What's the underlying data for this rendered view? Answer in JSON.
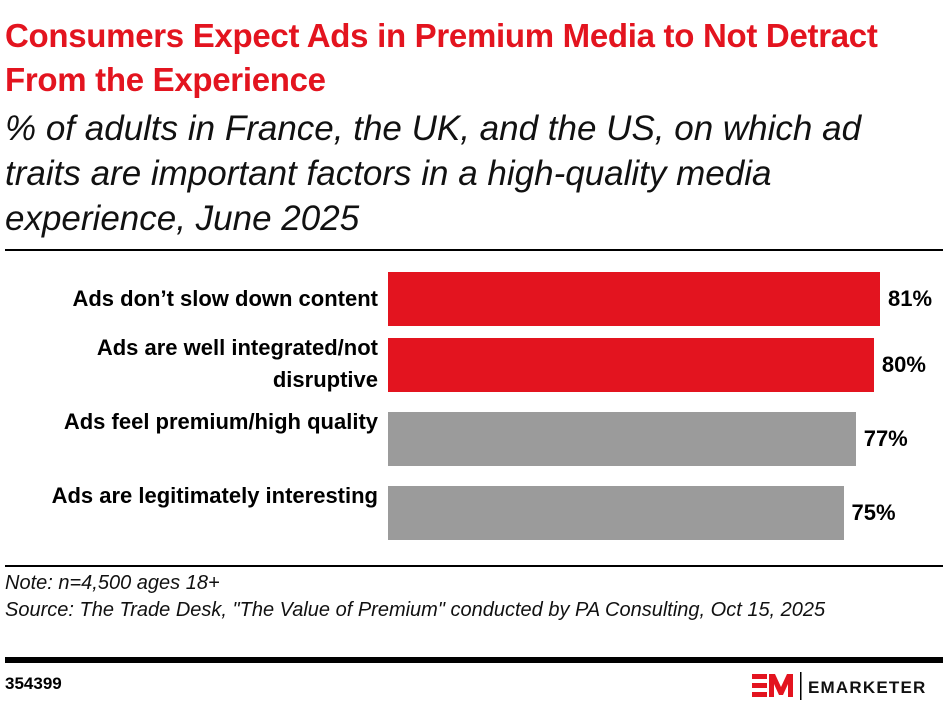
{
  "header": {
    "title": "Consumers Expect Ads in Premium Media to Not Detract From the Experience",
    "subtitle": "% of adults in France, the UK, and the US, on which ad traits are important factors in a high-quality media experience, June 2025"
  },
  "chart_data": {
    "type": "bar",
    "orientation": "horizontal",
    "categories": [
      "Ads don’t slow down content",
      "Ads are well integrated/not disruptive",
      "Ads feel premium/high quality",
      "Ads are legitimately interesting"
    ],
    "values": [
      81,
      80,
      77,
      75
    ],
    "data_labels": [
      "81%",
      "80%",
      "77%",
      "75%"
    ],
    "colors": [
      "#e3141f",
      "#e3141f",
      "#9b9b9b",
      "#9b9b9b"
    ],
    "xlim": [
      0,
      81
    ],
    "grid": false
  },
  "footer": {
    "note": "Note: n=4,500 ages 18+",
    "source": "Source: The Trade Desk, \"The Value of Premium\" conducted by PA Consulting, Oct 15, 2025",
    "chart_id": "354399",
    "logo_text": "EMARKETER",
    "brand_color": "#e3141f"
  }
}
